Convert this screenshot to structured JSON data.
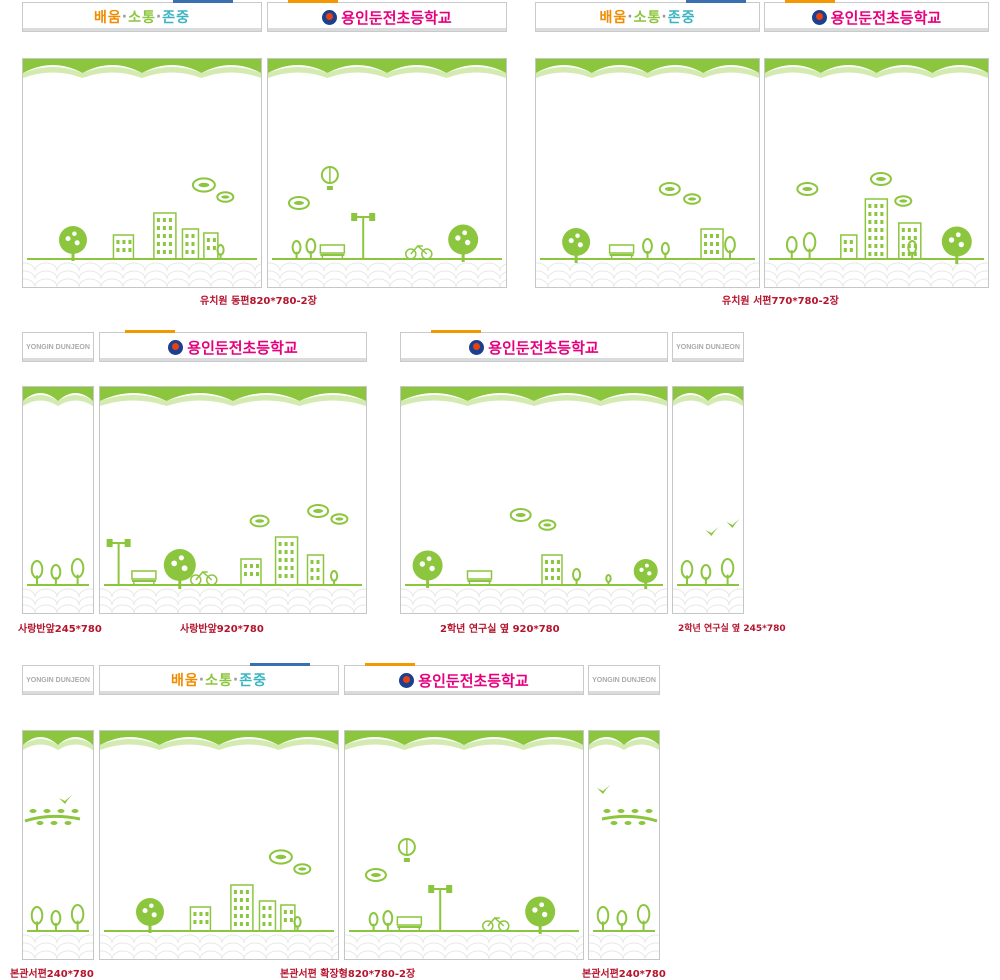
{
  "signs": {
    "motto_parts": [
      "배움",
      "소통",
      "존중"
    ],
    "motto_sep": "·",
    "school": "용인둔전초등학교",
    "english": "YONGIN DUNJEON"
  },
  "colors": {
    "green": "#8cc63f",
    "green_light": "#b6dc7c",
    "caption_red": "#b5142c",
    "school_pink": "#e6007e",
    "motto_orange": "#f08c00",
    "motto_teal": "#3bb4c1",
    "accent_blue": "#3a6fb0",
    "accent_orange": "#f39800"
  },
  "captions": {
    "c1": "유치원 동편820*780-2장",
    "c2": "유치원 서편770*780-2장",
    "c3": "사랑반앞245*780",
    "c4": "사랑반앞920*780",
    "c5": "2학년 연구실 옆 920*780",
    "c6": "2학년 연구실 옆 245*780",
    "c7": "본관서편240*780",
    "c8": "본관서편 확장형820*780-2장",
    "c9": "본관서편240*780"
  },
  "icons": [
    "wave-scallop",
    "tree-icon",
    "building-icon",
    "cloud-icon",
    "bench-icon",
    "streetlamp-icon",
    "bicycle-icon",
    "balloon-icon",
    "bird-icon",
    "branch-icon"
  ]
}
